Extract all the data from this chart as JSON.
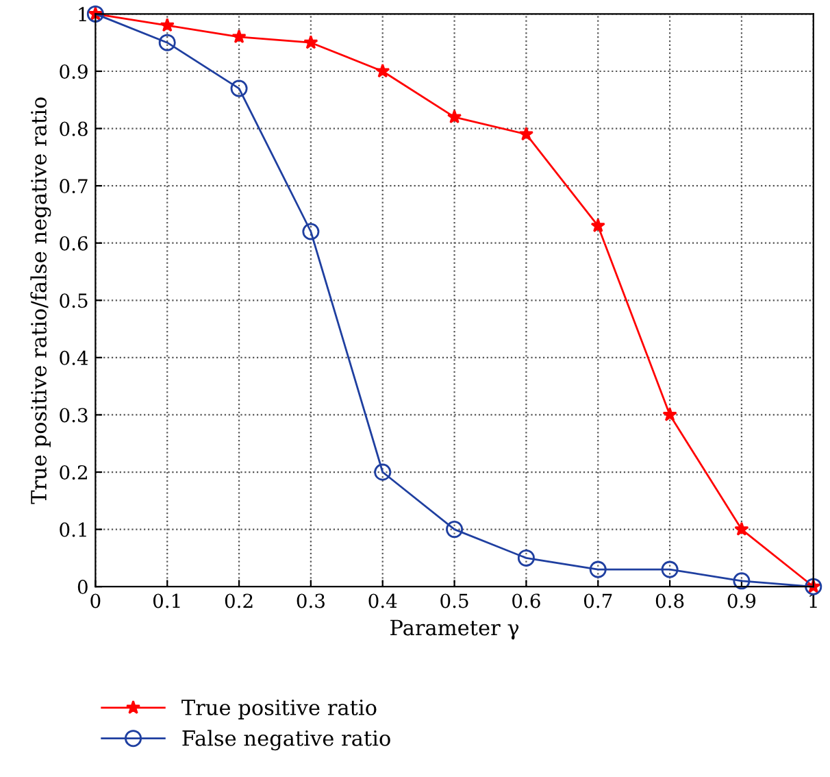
{
  "chart_data": {
    "type": "line",
    "xlabel": "Parameter γ",
    "ylabel": "True positive ratio/false negative ratio",
    "x": [
      0,
      0.1,
      0.2,
      0.3,
      0.4,
      0.5,
      0.6,
      0.7,
      0.8,
      0.9,
      1
    ],
    "series": [
      {
        "name": "True positive ratio",
        "color": "#ff0000",
        "marker": "star",
        "values": [
          1,
          0.98,
          0.96,
          0.95,
          0.9,
          0.82,
          0.79,
          0.63,
          0.3,
          0.1,
          0
        ]
      },
      {
        "name": "False negative ratio",
        "color": "#1f3fa0",
        "marker": "circle",
        "values": [
          1,
          0.95,
          0.87,
          0.62,
          0.2,
          0.1,
          0.05,
          0.03,
          0.03,
          0.01,
          0
        ]
      }
    ],
    "xlim": [
      0,
      1
    ],
    "ylim": [
      0,
      1
    ],
    "xticks": [
      0,
      0.1,
      0.2,
      0.3,
      0.4,
      0.5,
      0.6,
      0.7,
      0.8,
      0.9,
      1
    ],
    "yticks": [
      0,
      0.1,
      0.2,
      0.3,
      0.4,
      0.5,
      0.6,
      0.7,
      0.8,
      0.9,
      1
    ],
    "grid": true,
    "legend": "bottom",
    "line_style": "solid"
  }
}
